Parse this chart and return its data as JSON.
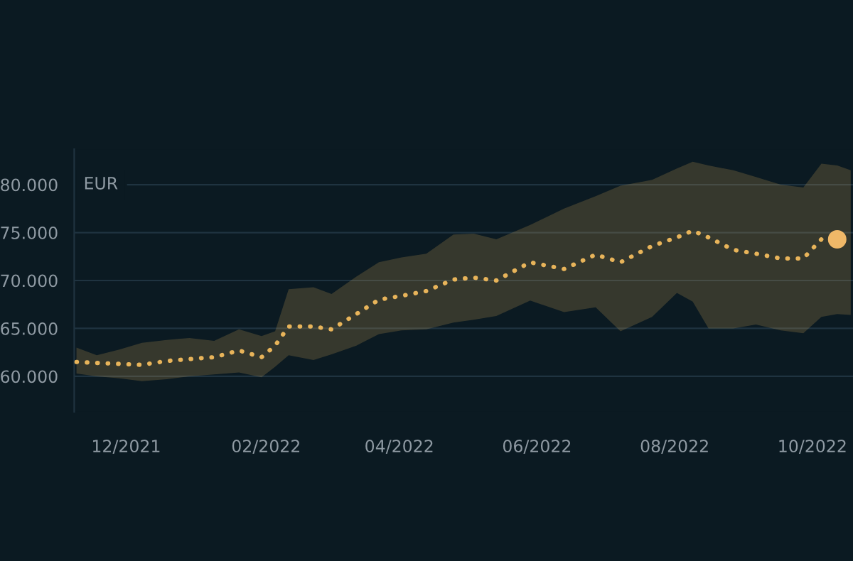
{
  "chart_data": {
    "type": "line",
    "ylabel": "EUR",
    "xlim": [
      "2021-11-08",
      "2022-10-19"
    ],
    "xticks": [
      {
        "value": "2021-12-01",
        "label": "12/2021"
      },
      {
        "value": "2022-02-01",
        "label": "02/2022"
      },
      {
        "value": "2022-04-01",
        "label": "04/2022"
      },
      {
        "value": "2022-06-01",
        "label": "06/2022"
      },
      {
        "value": "2022-08-01",
        "label": "08/2022"
      },
      {
        "value": "2022-10-01",
        "label": "10/2022"
      }
    ],
    "ylim": [
      56300,
      83700
    ],
    "yticks": [
      {
        "value": 60000,
        "label": "60.000"
      },
      {
        "value": 65000,
        "label": "65.000"
      },
      {
        "value": 70000,
        "label": "70.000"
      },
      {
        "value": 75000,
        "label": "75.000"
      },
      {
        "value": 80000,
        "label": "80.000"
      }
    ],
    "grid": "y",
    "legend": false,
    "line_style": "dotted",
    "marker": "none",
    "series": [
      {
        "color": "#e8b45a",
        "x": [
          "2021-11-09",
          "2021-11-18",
          "2021-11-28",
          "2021-12-08",
          "2021-12-19",
          "2021-12-29",
          "2022-01-09",
          "2022-01-20",
          "2022-01-30",
          "2022-02-05",
          "2022-02-11",
          "2022-02-22",
          "2022-03-02",
          "2022-03-13",
          "2022-03-23",
          "2022-04-02",
          "2022-04-13",
          "2022-04-25",
          "2022-05-04",
          "2022-05-14",
          "2022-05-29",
          "2022-06-13",
          "2022-06-27",
          "2022-07-08",
          "2022-07-22",
          "2022-08-02",
          "2022-08-09",
          "2022-08-16",
          "2022-08-27",
          "2022-09-06",
          "2022-09-17",
          "2022-09-27",
          "2022-10-05",
          "2022-10-12",
          "2022-10-18"
        ],
        "values": [
          61500,
          61400,
          61300,
          61200,
          61600,
          61800,
          62000,
          62700,
          62000,
          63200,
          65200,
          65200,
          64900,
          66500,
          68000,
          68400,
          68900,
          70100,
          70300,
          70000,
          71900,
          71200,
          72700,
          71900,
          73600,
          74500,
          75200,
          74500,
          73200,
          72800,
          72300,
          72300,
          74300,
          74300,
          73800
        ],
        "upper": [
          63000,
          62200,
          62800,
          63500,
          63800,
          64000,
          63700,
          64900,
          64200,
          64700,
          69100,
          69300,
          68600,
          70400,
          71900,
          72400,
          72800,
          74800,
          74900,
          74300,
          75800,
          77500,
          78800,
          79900,
          80500,
          81700,
          82400,
          82000,
          81500,
          80800,
          80000,
          79700,
          82200,
          82000,
          81500
        ],
        "lower": [
          60300,
          60000,
          59800,
          59500,
          59700,
          60000,
          60200,
          60400,
          59900,
          61000,
          62200,
          61700,
          62300,
          63200,
          64400,
          64800,
          64900,
          65600,
          65900,
          66300,
          67900,
          66700,
          67200,
          64700,
          66200,
          68700,
          67800,
          65000,
          65000,
          65400,
          64800,
          64500,
          66200,
          66500,
          66400
        ]
      },
      {
        "type": "scatter",
        "color": "#f0b868",
        "marker": "circle",
        "x": [
          "2022-10-12"
        ],
        "values": [
          74300
        ]
      }
    ]
  }
}
